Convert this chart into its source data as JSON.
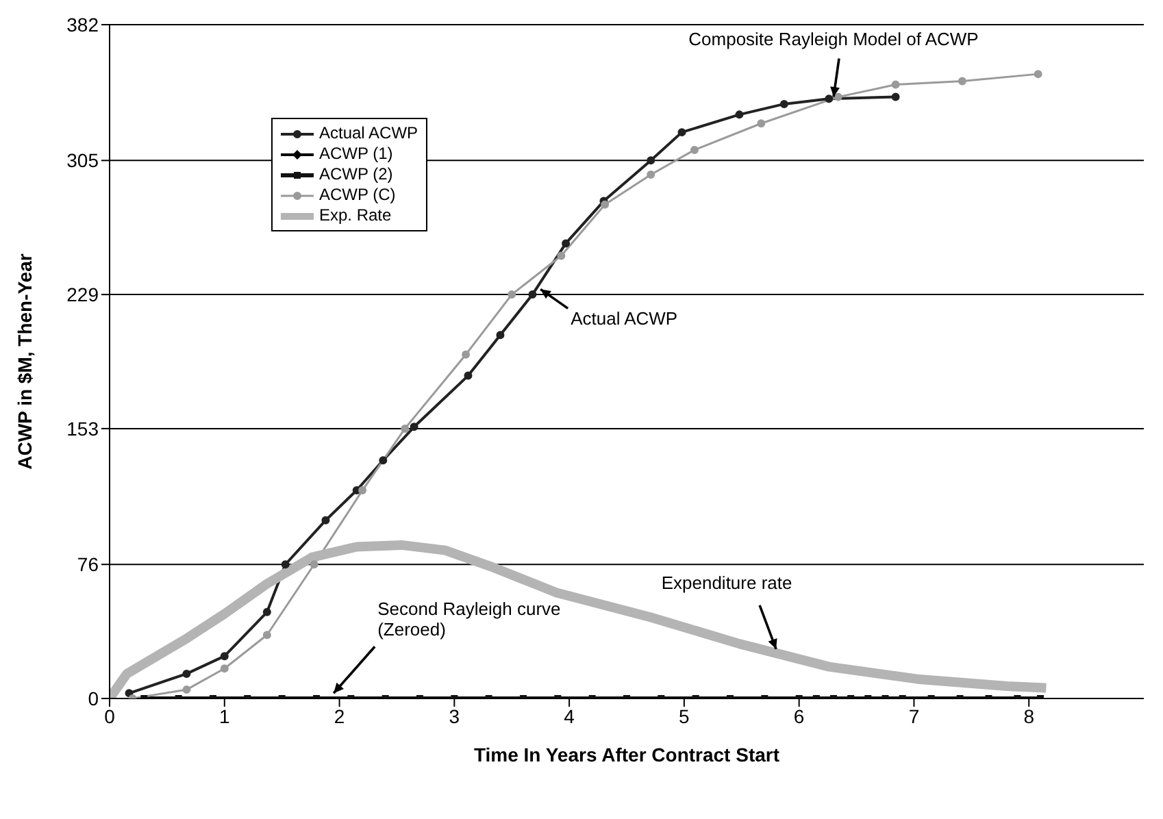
{
  "chart_data": {
    "type": "line",
    "xlabel": "Time In Years After Contract Start",
    "ylabel": "ACWP in $M, Then-Year",
    "xlim": [
      0,
      9
    ],
    "xticks": [
      0,
      1,
      2,
      3,
      4,
      5,
      6,
      7,
      8
    ],
    "ylim": [
      0,
      382
    ],
    "yticks": [
      0,
      76,
      153,
      229,
      305,
      382
    ],
    "grid": "y",
    "legend": "top left",
    "series": [
      {
        "name": "Actual ACWP",
        "color": "#222222",
        "marker": "circle",
        "x": [
          0.17,
          0.67,
          1.0,
          1.37,
          1.53,
          1.88,
          2.15,
          2.38,
          2.65,
          3.12,
          3.4,
          3.68,
          3.97,
          4.3,
          4.71,
          4.98,
          5.48,
          5.87,
          6.26,
          6.84
        ],
        "values": [
          3,
          14,
          24,
          49,
          76,
          101,
          118,
          135,
          154,
          183,
          206,
          229,
          258,
          282,
          305,
          321,
          331,
          337,
          340,
          341
        ]
      },
      {
        "name": "ACWP (1)",
        "color": "#000000",
        "marker": "diamond"
      },
      {
        "name": "ACWP (2)",
        "color": "#111111",
        "marker": "square",
        "x": [
          0.3,
          0.6,
          0.9,
          1.2,
          1.5,
          1.8,
          2.1,
          2.4,
          2.7,
          3.0,
          3.3,
          3.6,
          3.9,
          4.2,
          4.5,
          4.8,
          5.1,
          5.4,
          5.7,
          6.0,
          6.15,
          6.3,
          6.45,
          6.6,
          6.75,
          6.9,
          7.15,
          7.4,
          7.65,
          7.9,
          8.1
        ],
        "values": [
          0,
          0,
          0,
          0,
          0,
          0,
          0,
          0,
          0,
          0,
          0,
          0,
          0,
          0,
          0,
          0,
          0,
          0,
          0,
          0,
          0,
          0,
          0,
          0,
          0,
          0,
          0,
          0,
          0,
          0,
          0
        ]
      },
      {
        "name": "ACWP (C)",
        "color": "#9a9a9a",
        "marker": "circle",
        "x": [
          0.2,
          0.67,
          1.0,
          1.37,
          1.78,
          2.2,
          2.57,
          3.1,
          3.5,
          3.93,
          4.31,
          4.71,
          5.09,
          5.67,
          6.34,
          6.84,
          7.42,
          8.08
        ],
        "values": [
          0,
          5,
          17,
          36,
          76,
          118,
          153,
          195,
          229,
          251,
          280,
          297,
          311,
          326,
          341,
          348,
          350,
          354
        ]
      },
      {
        "name": "Exp. Rate",
        "color": "#b4b4b4",
        "marker": "none",
        "x": [
          0,
          0.15,
          0.67,
          1.0,
          1.37,
          1.76,
          2.15,
          2.54,
          2.92,
          3.31,
          3.89,
          4.71,
          5.48,
          6.26,
          7.03,
          7.81,
          8.15
        ],
        "values": [
          0,
          14,
          34,
          48,
          65,
          80,
          86,
          87,
          84,
          75,
          60,
          46,
          31,
          18,
          11,
          7,
          6
        ]
      }
    ],
    "annotations": [
      {
        "text": "Composite Rayleigh Model of ACWP",
        "x": 6.3,
        "y": 341
      },
      {
        "text": "Actual ACWP",
        "x": 3.75,
        "y": 232
      },
      {
        "text": "Expenditure rate",
        "x": 5.8,
        "y": 28
      },
      {
        "text": "Second Rayleigh curve (Zeroed)",
        "x": 1.95,
        "y": 3
      }
    ]
  }
}
